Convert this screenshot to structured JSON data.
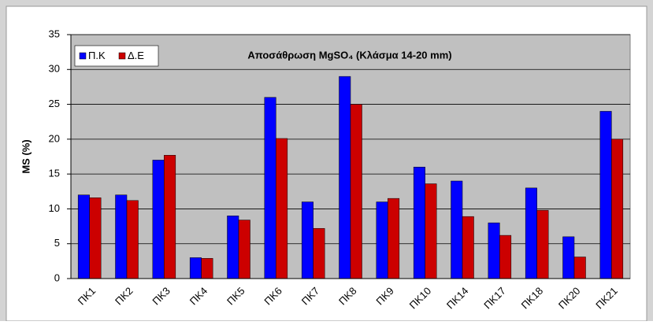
{
  "chart_data": {
    "type": "bar",
    "title": "Αποσάθρωση MgSO₄ (Κλάσμα 14-20 mm)",
    "y_label": "MS (%)",
    "categories": [
      "ΠΚ1",
      "ΠΚ2",
      "ΠΚ3",
      "ΠΚ4",
      "ΠΚ5",
      "ΠΚ6",
      "ΠΚ7",
      "ΠΚ8",
      "ΠΚ9",
      "ΠΚ10",
      "ΠΚ14",
      "ΠΚ17",
      "ΠΚ18",
      "ΠΚ20",
      "ΠΚ21"
    ],
    "series": [
      {
        "name": "Π.Κ",
        "color": "#0000ff",
        "values": [
          12,
          12,
          17,
          3,
          9,
          26,
          11,
          29,
          11,
          16,
          14,
          8,
          13,
          6,
          24
        ]
      },
      {
        "name": "Δ.Ε",
        "color": "#cc0000",
        "values": [
          11.6,
          11.2,
          17.7,
          2.9,
          8.4,
          20.1,
          7.2,
          25,
          11.5,
          13.6,
          8.9,
          6.2,
          9.8,
          3.1,
          20
        ]
      }
    ],
    "ylim": [
      0,
      35
    ],
    "yticks": [
      0,
      5,
      10,
      15,
      20,
      25,
      30,
      35
    ],
    "grid": true,
    "legend": "top-left"
  }
}
